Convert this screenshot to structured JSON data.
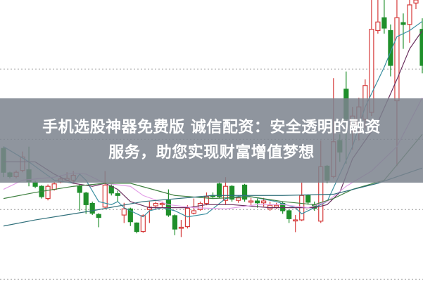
{
  "banner": {
    "line1": "手机选股神器免费版 诚信配资：安全透明的融资",
    "line2": "服务，助您实现财富增值梦想"
  },
  "chart_data": {
    "type": "candlestick",
    "title": "",
    "xlabel": "",
    "ylabel": "",
    "ylim": [
      -60,
      400
    ],
    "grid": "horizontal dotted",
    "colors": {
      "up": "#d63c3c",
      "down": "#1f8f2b",
      "grid": "#9a9a9a",
      "ma": [
        "#3a8fa0",
        "#6a2f5e",
        "#e3a0e8",
        "#3f8040",
        "#2f6f7a"
      ]
    },
    "candles": [
      {
        "o": 157,
        "c": 118,
        "h": 160,
        "l": 110
      },
      {
        "o": 117,
        "c": 111,
        "h": 119,
        "l": 108
      },
      {
        "o": 111,
        "c": 118,
        "h": 121,
        "l": 108
      },
      {
        "o": 121,
        "c": 143,
        "h": 152,
        "l": 118
      },
      {
        "o": 122,
        "c": 103,
        "h": 160,
        "l": 95
      },
      {
        "o": 101,
        "c": 95,
        "h": 104,
        "l": 92
      },
      {
        "o": 95,
        "c": 78,
        "h": 97,
        "l": 75
      },
      {
        "o": 75,
        "c": 95,
        "h": 98,
        "l": 72
      },
      {
        "o": 90,
        "c": 99,
        "h": 102,
        "l": 88
      },
      {
        "o": 102,
        "c": 107,
        "h": 112,
        "l": 100
      },
      {
        "o": 105,
        "c": 108,
        "h": 118,
        "l": 103
      },
      {
        "o": 105,
        "c": 113,
        "h": 120,
        "l": 102
      },
      {
        "o": 95,
        "c": 85,
        "h": 98,
        "l": 55
      },
      {
        "o": 84,
        "c": 65,
        "h": 86,
        "l": 50
      },
      {
        "o": 67,
        "c": 51,
        "h": 70,
        "l": 48
      },
      {
        "o": 49,
        "c": 44,
        "h": 51,
        "l": 28
      },
      {
        "o": 61,
        "c": 97,
        "h": 120,
        "l": 58
      },
      {
        "o": 95,
        "c": 84,
        "h": 100,
        "l": 80
      },
      {
        "o": 83,
        "c": 80,
        "h": 88,
        "l": 70
      },
      {
        "o": 48,
        "c": 58,
        "h": 68,
        "l": 35
      },
      {
        "o": 58,
        "c": 37,
        "h": 60,
        "l": 30
      },
      {
        "o": 35,
        "c": 21,
        "h": 36,
        "l": 18
      },
      {
        "o": 21,
        "c": 47,
        "h": 49,
        "l": 19
      },
      {
        "o": 57,
        "c": 61,
        "h": 70,
        "l": 35
      },
      {
        "o": 63,
        "c": 67,
        "h": 70,
        "l": 58
      },
      {
        "o": 65,
        "c": 67,
        "h": 70,
        "l": 60
      },
      {
        "o": 72,
        "c": 48,
        "h": 90,
        "l": 45
      },
      {
        "o": 47,
        "c": 25,
        "h": 49,
        "l": 15
      },
      {
        "o": 27,
        "c": 28,
        "h": 40,
        "l": 12
      },
      {
        "o": 29,
        "c": 59,
        "h": 64,
        "l": 26
      },
      {
        "o": 51,
        "c": 55,
        "h": 75,
        "l": 49
      },
      {
        "o": 57,
        "c": 67,
        "h": 70,
        "l": 55
      },
      {
        "o": 67,
        "c": 78,
        "h": 85,
        "l": 64
      },
      {
        "o": 80,
        "c": 78,
        "h": 85,
        "l": 75
      },
      {
        "o": 99,
        "c": 78,
        "h": 101,
        "l": 75
      },
      {
        "o": 72,
        "c": 95,
        "h": 110,
        "l": 65
      },
      {
        "o": 95,
        "c": 74,
        "h": 97,
        "l": 70
      },
      {
        "o": 72,
        "c": 76,
        "h": 80,
        "l": 68
      },
      {
        "o": 97,
        "c": 74,
        "h": 99,
        "l": 70
      },
      {
        "o": 69,
        "c": 71,
        "h": 76,
        "l": 62
      },
      {
        "o": 71,
        "c": 68,
        "h": 75,
        "l": 60
      },
      {
        "o": 68,
        "c": 71,
        "h": 76,
        "l": 62
      },
      {
        "o": 58,
        "c": 64,
        "h": 70,
        "l": 55
      },
      {
        "o": 61,
        "c": 64,
        "h": 68,
        "l": 58
      },
      {
        "o": 67,
        "c": 55,
        "h": 70,
        "l": 50
      },
      {
        "o": 55,
        "c": 42,
        "h": 57,
        "l": 35
      },
      {
        "o": 39,
        "c": 40,
        "h": 48,
        "l": 20
      },
      {
        "o": 40,
        "c": 80,
        "h": 101,
        "l": 38
      },
      {
        "o": 80,
        "c": 69,
        "h": 82,
        "l": 65
      },
      {
        "o": 65,
        "c": 59,
        "h": 70,
        "l": 55
      },
      {
        "o": 38,
        "c": 127,
        "h": 170,
        "l": 35
      },
      {
        "o": 128,
        "c": 105,
        "h": 130,
        "l": 100
      },
      {
        "o": 111,
        "c": 168,
        "h": 272,
        "l": 108
      },
      {
        "o": 170,
        "c": 151,
        "h": 180,
        "l": 135
      },
      {
        "o": 254,
        "c": 205,
        "h": 283,
        "l": 132
      },
      {
        "o": 185,
        "c": 210,
        "h": 225,
        "l": 155
      },
      {
        "o": 195,
        "c": 225,
        "h": 240,
        "l": 170
      },
      {
        "o": 205,
        "c": 260,
        "h": 270,
        "l": 190
      },
      {
        "o": 216,
        "c": 352,
        "h": 400,
        "l": 210
      },
      {
        "o": 350,
        "c": 364,
        "h": 400,
        "l": 345
      },
      {
        "o": 371,
        "c": 354,
        "h": 400,
        "l": 345
      },
      {
        "o": 350,
        "c": 293,
        "h": 360,
        "l": 275
      },
      {
        "o": 235,
        "c": 371,
        "h": 400,
        "l": 128
      },
      {
        "o": 363,
        "c": 360,
        "h": 378,
        "l": 320
      },
      {
        "o": 360,
        "c": 392,
        "h": 400,
        "l": 330
      },
      {
        "o": 395,
        "c": 400,
        "h": 400,
        "l": 385
      },
      {
        "o": 352,
        "c": 293,
        "h": 370,
        "l": 280
      }
    ],
    "moving_averages": [
      [
        [
          1,
          160
        ],
        [
          5,
          135
        ],
        [
          9,
          105
        ],
        [
          12,
          100
        ],
        [
          13,
          115
        ],
        [
          14,
          105
        ],
        [
          16,
          70
        ],
        [
          18,
          65
        ],
        [
          19,
          70
        ],
        [
          20,
          60
        ],
        [
          23,
          45
        ],
        [
          24,
          55
        ],
        [
          26,
          60
        ],
        [
          28,
          55
        ],
        [
          30,
          45
        ],
        [
          33,
          50
        ],
        [
          36,
          75
        ],
        [
          39,
          80
        ],
        [
          44,
          70
        ],
        [
          47,
          60
        ],
        [
          48,
          50
        ],
        [
          52,
          70
        ],
        [
          54,
          115
        ],
        [
          56,
          160
        ],
        [
          58,
          225
        ],
        [
          61,
          290
        ],
        [
          63,
          340
        ],
        [
          65,
          350
        ],
        [
          67,
          365
        ]
      ],
      [
        [
          1,
          135
        ],
        [
          6,
          135
        ],
        [
          9,
          115
        ],
        [
          12,
          100
        ],
        [
          15,
          95
        ],
        [
          17,
          100
        ],
        [
          19,
          90
        ],
        [
          21,
          70
        ],
        [
          24,
          60
        ],
        [
          27,
          60
        ],
        [
          30,
          60
        ],
        [
          33,
          65
        ],
        [
          37,
          65
        ],
        [
          43,
          60
        ],
        [
          47,
          60
        ],
        [
          50,
          60
        ],
        [
          52,
          65
        ],
        [
          54,
          85
        ],
        [
          56,
          140
        ],
        [
          60,
          200
        ],
        [
          63,
          270
        ],
        [
          65,
          320
        ],
        [
          67,
          350
        ]
      ],
      [
        [
          1,
          90
        ],
        [
          4,
          105
        ],
        [
          9,
          110
        ],
        [
          12,
          117
        ],
        [
          14,
          115
        ],
        [
          17,
          100
        ],
        [
          21,
          95
        ],
        [
          23,
          80
        ],
        [
          27,
          65
        ],
        [
          31,
          60
        ],
        [
          36,
          58
        ],
        [
          41,
          65
        ],
        [
          45,
          65
        ],
        [
          49,
          60
        ],
        [
          52,
          70
        ],
        [
          55,
          95
        ],
        [
          59,
          120
        ],
        [
          63,
          160
        ],
        [
          67,
          240
        ]
      ],
      [
        [
          1,
          75
        ],
        [
          6,
          85
        ],
        [
          12,
          95
        ],
        [
          17,
          100
        ],
        [
          21,
          100
        ],
        [
          28,
          80
        ],
        [
          34,
          75
        ],
        [
          40,
          78
        ],
        [
          45,
          70
        ],
        [
          50,
          65
        ],
        [
          53,
          75
        ],
        [
          56,
          90
        ],
        [
          61,
          105
        ],
        [
          67,
          180
        ]
      ],
      [
        [
          1,
          30
        ],
        [
          6,
          40
        ],
        [
          12,
          50
        ],
        [
          15,
          55
        ],
        [
          23,
          70
        ],
        [
          34,
          80
        ],
        [
          45,
          80
        ],
        [
          53,
          82
        ],
        [
          60,
          100
        ],
        [
          67,
          125
        ]
      ]
    ]
  }
}
